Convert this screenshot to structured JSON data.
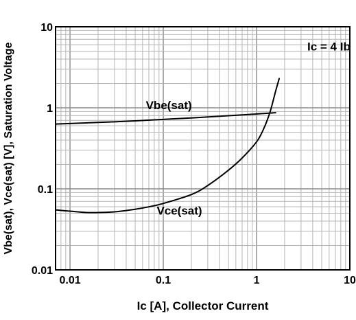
{
  "chart_data": {
    "type": "line",
    "title": "",
    "xlabel": "Ic [A], Collector Current",
    "ylabel": "Vbe(sat), Vce(sat) [V], Saturation Voltage",
    "xscale": "log",
    "yscale": "log",
    "xlim": [
      0.007,
      10
    ],
    "ylim": [
      0.01,
      10
    ],
    "grid": true,
    "x_ticks": [
      {
        "value": 0.01,
        "label": "0.01"
      },
      {
        "value": 0.1,
        "label": "0.1"
      },
      {
        "value": 1,
        "label": "1"
      },
      {
        "value": 10,
        "label": "10"
      }
    ],
    "y_ticks": [
      {
        "value": 0.01,
        "label": "0.01"
      },
      {
        "value": 0.1,
        "label": "0.1"
      },
      {
        "value": 1,
        "label": "1"
      },
      {
        "value": 10,
        "label": "10"
      }
    ],
    "annotations": [
      {
        "text": "Ic = 4 Ib",
        "x": 3.5,
        "y": 5.1
      }
    ],
    "series": [
      {
        "name": "Vbe(sat)",
        "label_at": {
          "x": 0.065,
          "y": 0.96
        },
        "points": [
          [
            0.007,
            0.63
          ],
          [
            0.01,
            0.64
          ],
          [
            0.02,
            0.66
          ],
          [
            0.05,
            0.69
          ],
          [
            0.1,
            0.72
          ],
          [
            0.2,
            0.75
          ],
          [
            0.5,
            0.8
          ],
          [
            1.0,
            0.84
          ],
          [
            1.6,
            0.87
          ]
        ]
      },
      {
        "name": "Vce(sat)",
        "label_at": {
          "x": 0.085,
          "y": 0.048
        },
        "points": [
          [
            0.007,
            0.055
          ],
          [
            0.01,
            0.053
          ],
          [
            0.015,
            0.051
          ],
          [
            0.02,
            0.051
          ],
          [
            0.03,
            0.052
          ],
          [
            0.05,
            0.056
          ],
          [
            0.07,
            0.06
          ],
          [
            0.1,
            0.066
          ],
          [
            0.2,
            0.085
          ],
          [
            0.3,
            0.11
          ],
          [
            0.5,
            0.17
          ],
          [
            0.7,
            0.24
          ],
          [
            1.0,
            0.38
          ],
          [
            1.2,
            0.56
          ],
          [
            1.4,
            0.9
          ],
          [
            1.6,
            1.6
          ],
          [
            1.75,
            2.3
          ]
        ]
      }
    ]
  }
}
